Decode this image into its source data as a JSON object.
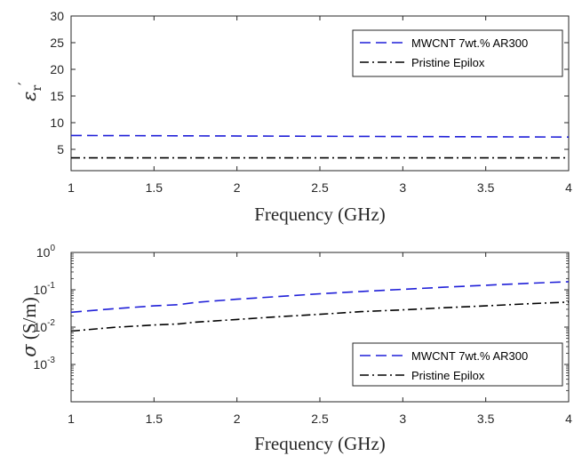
{
  "colors": {
    "series_cnt": "#1f1fd8",
    "series_pristine": "#000000",
    "axis": "#262626",
    "box": "#262626"
  },
  "chart_data": [
    {
      "type": "line",
      "xlabel": "Frequency (GHz)",
      "ylabel_symbol": "ε",
      "ylabel_sub": "r",
      "ylabel_prime": "′",
      "xlim": [
        1,
        4
      ],
      "ylim": [
        1,
        30
      ],
      "xticks": [
        {
          "v": 1,
          "label": "1"
        },
        {
          "v": 1.5,
          "label": "1.5"
        },
        {
          "v": 2,
          "label": "2"
        },
        {
          "v": 2.5,
          "label": "2.5"
        },
        {
          "v": 3,
          "label": "3"
        },
        {
          "v": 3.5,
          "label": "3.5"
        },
        {
          "v": 4,
          "label": "4"
        }
      ],
      "yticks": [
        {
          "v": 5,
          "label": "5"
        },
        {
          "v": 10,
          "label": "10"
        },
        {
          "v": 15,
          "label": "15"
        },
        {
          "v": 20,
          "label": "20"
        },
        {
          "v": 25,
          "label": "25"
        },
        {
          "v": 30,
          "label": "30"
        }
      ],
      "legend_position": "top-right",
      "series": [
        {
          "name": "MWCNT 7wt.% AR300",
          "style": "dashed",
          "color": "#1f1fd8",
          "x": [
            1,
            4
          ],
          "y": [
            7.6,
            7.3
          ]
        },
        {
          "name": "Pristine Epilox",
          "style": "dashdot",
          "color": "#000000",
          "x": [
            1,
            4
          ],
          "y": [
            3.4,
            3.4
          ]
        }
      ]
    },
    {
      "type": "line",
      "yscale": "log",
      "xlabel": "Frequency (GHz)",
      "ylabel_symbol": "σ",
      "ylabel_rest": " (S/m)",
      "xlim": [
        1,
        4
      ],
      "ylim": [
        0.0001,
        1
      ],
      "xticks": [
        {
          "v": 1,
          "label": "1"
        },
        {
          "v": 1.5,
          "label": "1.5"
        },
        {
          "v": 2,
          "label": "2"
        },
        {
          "v": 2.5,
          "label": "2.5"
        },
        {
          "v": 3,
          "label": "3"
        },
        {
          "v": 3.5,
          "label": "3.5"
        },
        {
          "v": 4,
          "label": "4"
        }
      ],
      "yticks": [
        {
          "v": 0.001,
          "base": "10",
          "exp": "-3"
        },
        {
          "v": 0.01,
          "base": "10",
          "exp": "-2"
        },
        {
          "v": 0.1,
          "base": "10",
          "exp": "-1"
        },
        {
          "v": 1,
          "base": "10",
          "exp": "0"
        }
      ],
      "legend_position": "bottom-right",
      "series": [
        {
          "name": "MWCNT 7wt.% AR300",
          "style": "dashed",
          "color": "#1f1fd8",
          "x": [
            1,
            1.25,
            1.5,
            1.65,
            1.75,
            2,
            2.25,
            2.5,
            2.75,
            3,
            3.25,
            3.5,
            3.75,
            4
          ],
          "y": [
            0.025,
            0.031,
            0.037,
            0.04,
            0.046,
            0.056,
            0.066,
            0.078,
            0.09,
            0.103,
            0.117,
            0.132,
            0.148,
            0.165
          ]
        },
        {
          "name": "Pristine Epilox",
          "style": "dashdot",
          "color": "#000000",
          "x": [
            1,
            1.25,
            1.5,
            1.65,
            1.75,
            2,
            2.25,
            2.5,
            2.75,
            3,
            3.25,
            3.5,
            3.75,
            4
          ],
          "y": [
            0.0078,
            0.0098,
            0.0114,
            0.0122,
            0.0136,
            0.016,
            0.019,
            0.022,
            0.026,
            0.029,
            0.033,
            0.037,
            0.042,
            0.047
          ]
        }
      ]
    }
  ]
}
